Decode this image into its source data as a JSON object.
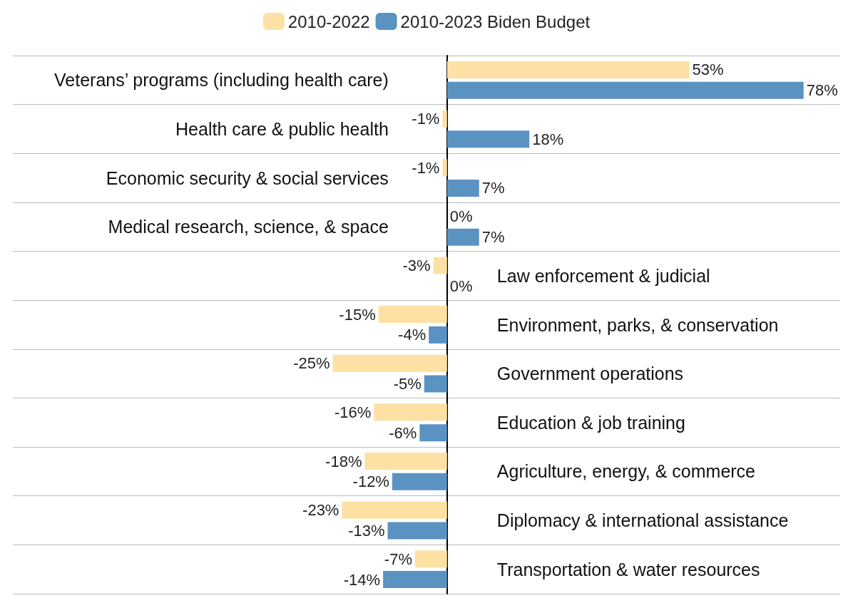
{
  "chart_data": {
    "type": "bar",
    "orientation": "horizontal",
    "categories": [
      "Veterans’ programs (including health care)",
      "Health care & public health",
      "Economic security & social services",
      "Medical research, science, & space",
      "Law enforcement & judicial",
      "Environment, parks, & conservation",
      "Government operations",
      "Education & job training",
      "Agriculture, energy, & commerce",
      "Diplomacy & international assistance",
      "Transportation & water resources"
    ],
    "series": [
      {
        "name": "2010-2022",
        "color": "#fde1a4",
        "values": [
          53,
          -1,
          -1,
          0,
          -3,
          -15,
          -25,
          -16,
          -18,
          -23,
          -7
        ],
        "value_labels": [
          "53%",
          "-1%",
          "-1%",
          "0%",
          "-3%",
          "-15%",
          "-25%",
          "-16%",
          "-18%",
          "-23%",
          "-7%"
        ]
      },
      {
        "name": "2010-2023 Biden Budget",
        "color": "#5a92c2",
        "values": [
          78,
          18,
          7,
          7,
          0,
          -4,
          -5,
          -6,
          -12,
          -13,
          -14
        ],
        "value_labels": [
          "78%",
          "18%",
          "7%",
          "7%",
          "0%",
          "-4%",
          "-5%",
          "-6%",
          "-12%",
          "-13%",
          "-14%"
        ]
      }
    ],
    "xlim": [
      -95,
      86
    ],
    "tick_labels": false,
    "grid": "y",
    "legend": "top"
  }
}
